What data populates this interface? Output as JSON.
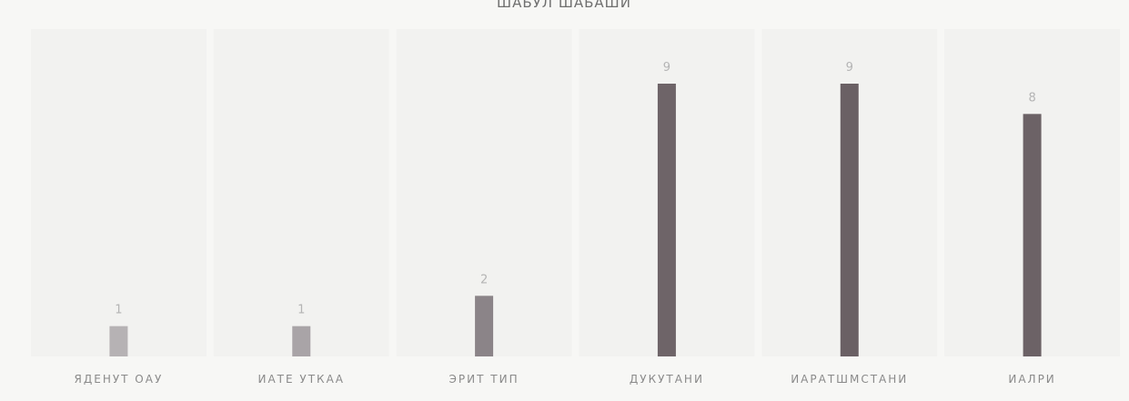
{
  "chart_data": {
    "type": "bar",
    "title": "ШАБУЛ ШАБАШИ",
    "xlabel": "",
    "ylabel": "",
    "categories": [
      "ЯДЕНУТ ОАУ",
      "ИАТЕ УТКАА",
      "ЭРИТ ТИП",
      "ДУКУТАНИ",
      "ИАРАТШМСТАНИ",
      "ИАЛРИ"
    ],
    "values": [
      1,
      1,
      2,
      9,
      9,
      8
    ],
    "data_labels": [
      "1",
      "1",
      "2",
      "9",
      "9",
      "8"
    ],
    "ylim": [
      0,
      9
    ],
    "grid": true,
    "legend": "none",
    "colors": {
      "bars": [
        "#b6b2b4",
        "#a9a4a7",
        "#8b8488",
        "#6e6468",
        "#6a6064",
        "#6c6266"
      ],
      "background": "#f7f7f5",
      "panel": "#ececea"
    }
  }
}
